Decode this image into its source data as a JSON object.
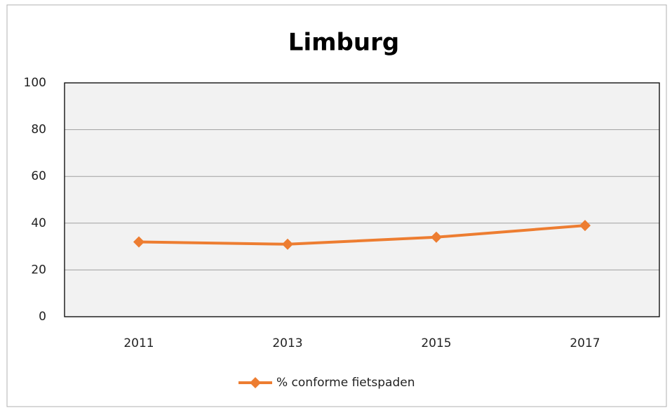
{
  "chart_data": {
    "type": "line",
    "title": "Limburg",
    "categories": [
      "2011",
      "2013",
      "2015",
      "2017"
    ],
    "series": [
      {
        "name": "% conforme fietspaden",
        "color": "#ed7d31",
        "values": [
          32,
          31,
          34,
          39
        ]
      }
    ],
    "ylim": [
      0,
      100
    ],
    "yticks": [
      0,
      20,
      40,
      60,
      80,
      100
    ],
    "grid": true,
    "legend": "bottom"
  }
}
